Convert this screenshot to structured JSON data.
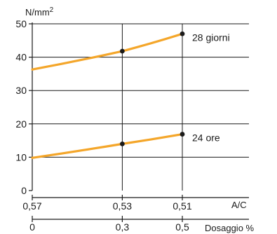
{
  "chart_data": {
    "type": "line",
    "y_unit_base": "N/mm",
    "y_unit_sup": "2",
    "ylim": [
      0,
      50
    ],
    "y_ticks": [
      "0",
      "10",
      "20",
      "30",
      "40",
      "50"
    ],
    "y_tick_values": [
      0,
      10,
      20,
      30,
      40,
      50
    ],
    "x_primary": {
      "label": "A/C",
      "ticks": [
        "0,57",
        "0,53",
        "0,51"
      ],
      "values": [
        0.57,
        0.53,
        0.51
      ]
    },
    "x_secondary": {
      "label": "Dosaggio %",
      "ticks": [
        "0",
        "0,3",
        "0,5"
      ],
      "values": [
        0,
        0.3,
        0.5
      ]
    },
    "grid": true,
    "series": [
      {
        "name": "28 giorni",
        "x": [
          0,
          0.3,
          0.5
        ],
        "values": [
          36.3,
          41.8,
          47.0
        ],
        "markers": [
          false,
          true,
          true
        ]
      },
      {
        "name": "24 ore",
        "x": [
          0,
          0.3,
          0.5
        ],
        "values": [
          9.8,
          14.0,
          16.9
        ],
        "markers": [
          false,
          true,
          true
        ]
      }
    ],
    "colors": {
      "line": "#f4a62a",
      "marker": "#1a1a1a",
      "axis": "#1a1a1a",
      "grid": "#1a1a1a"
    }
  }
}
